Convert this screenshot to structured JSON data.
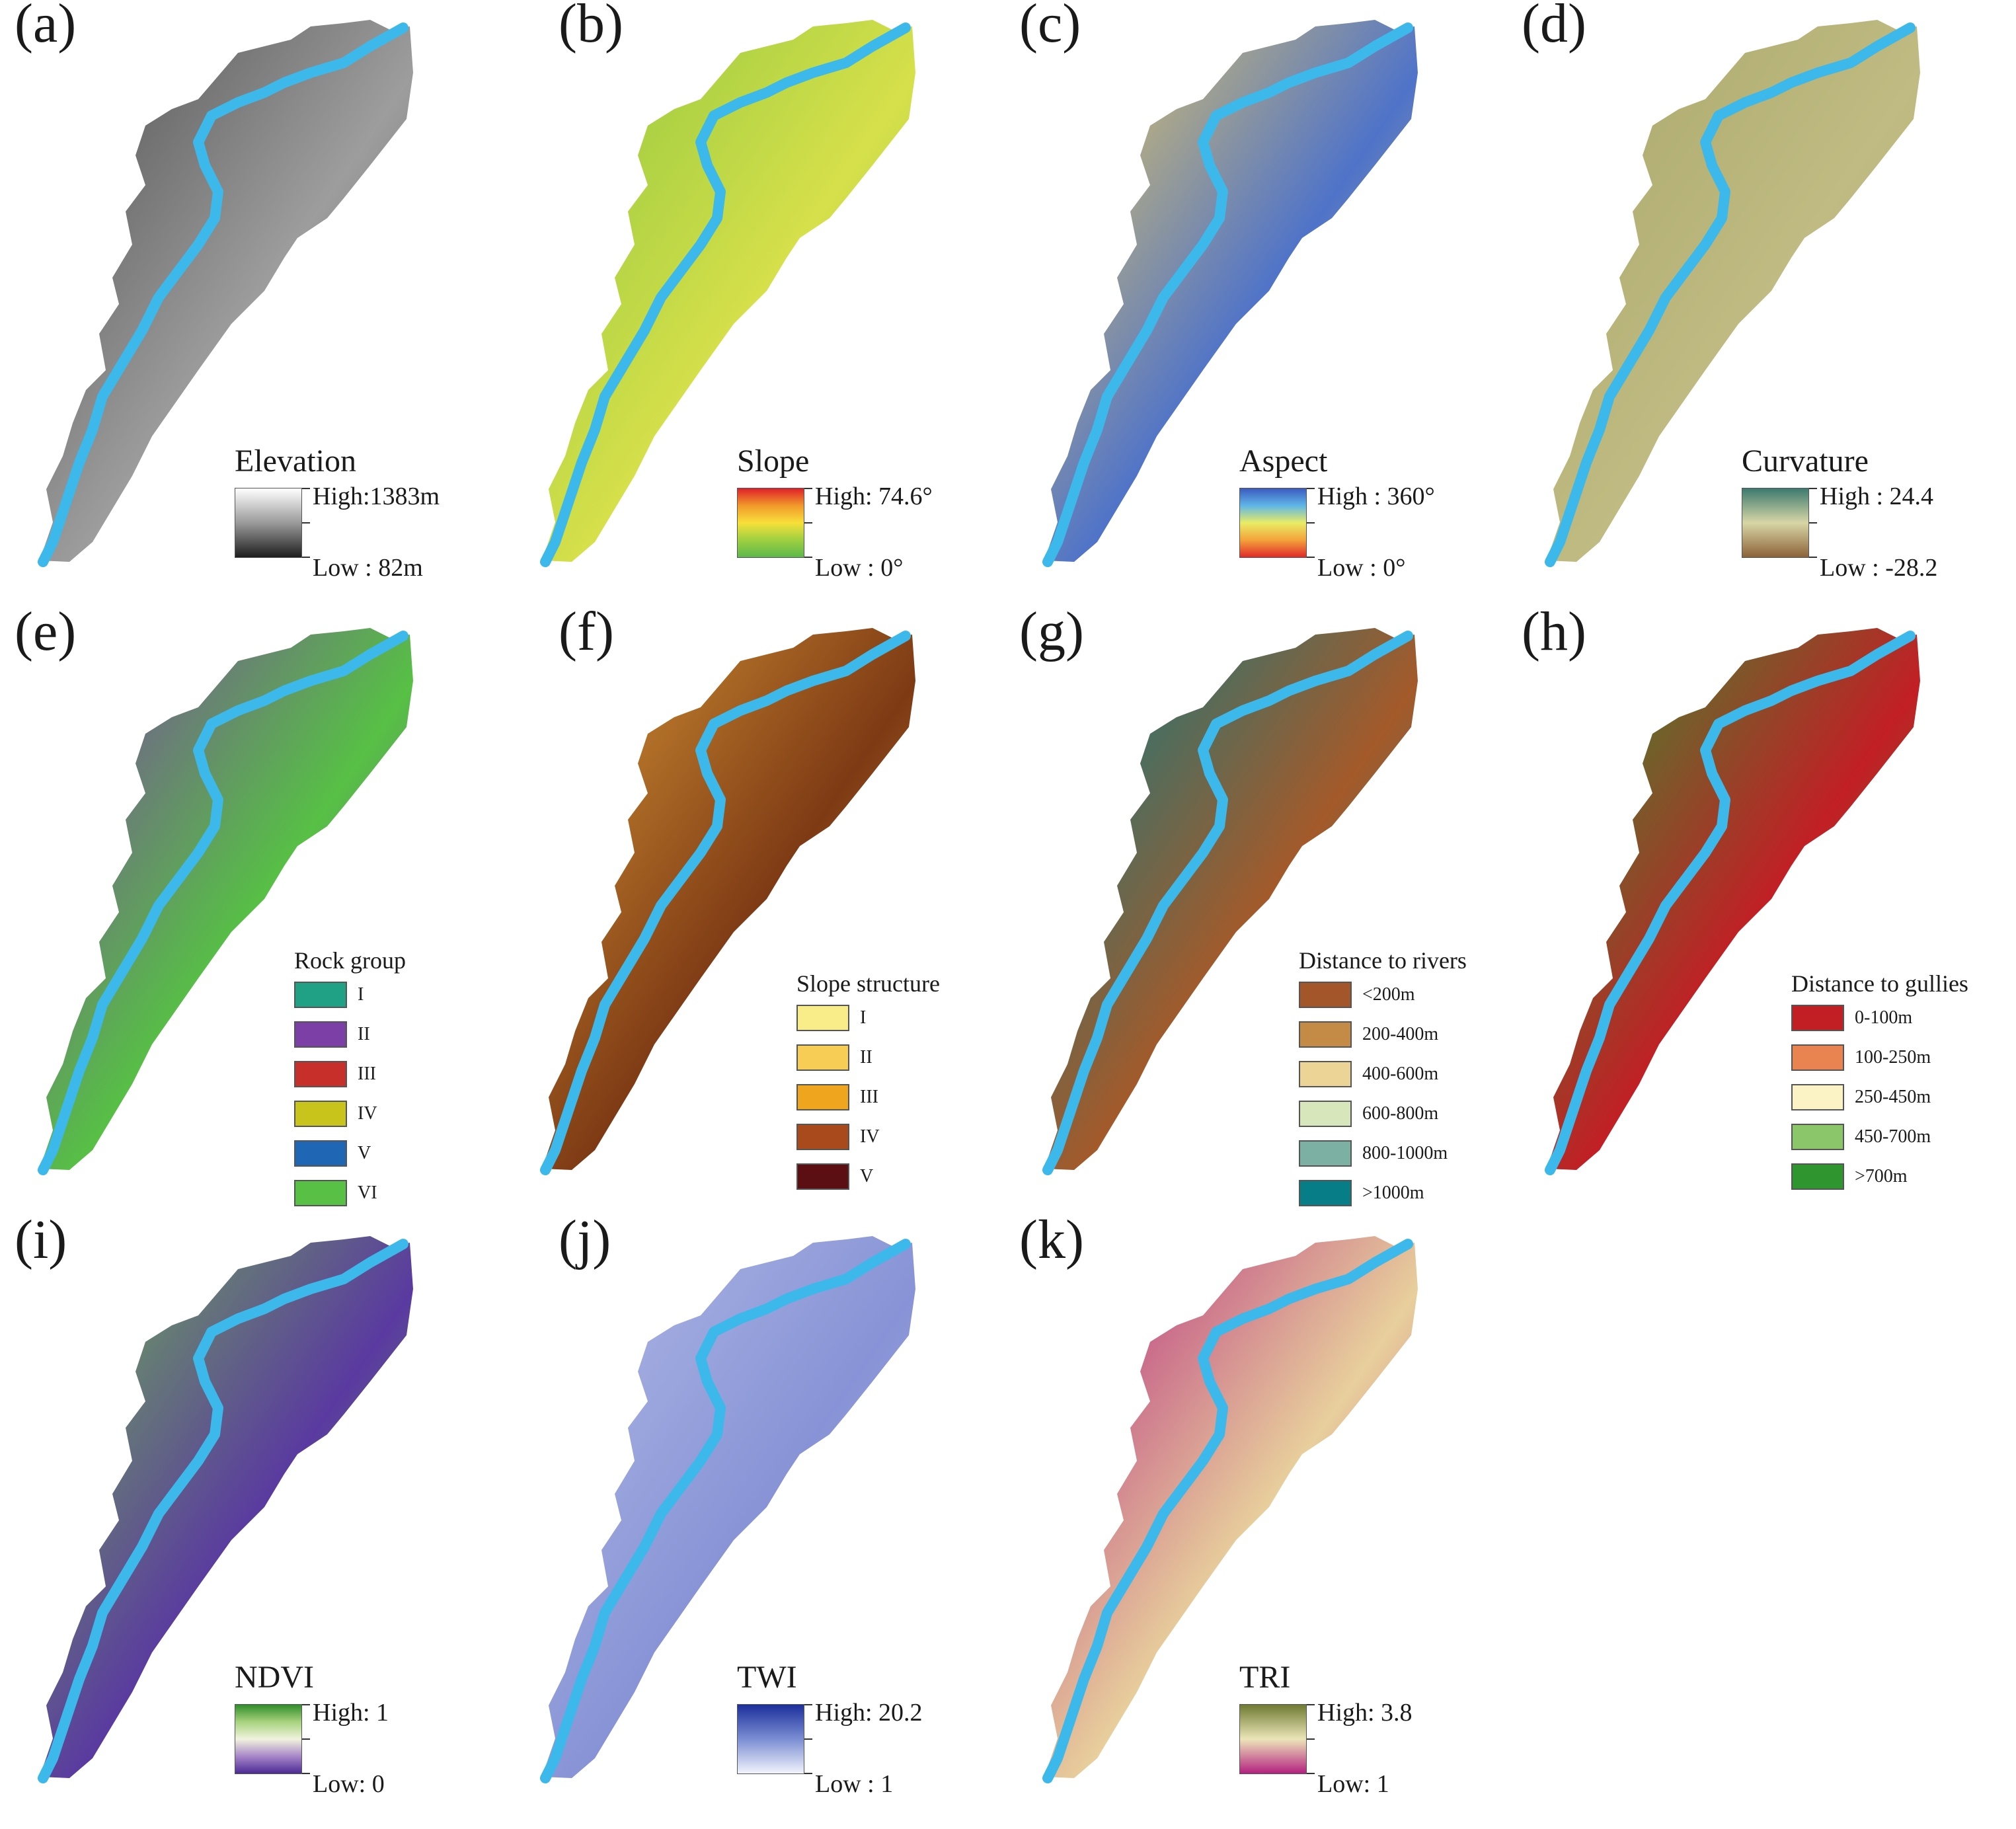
{
  "panels": [
    {
      "id": "a",
      "label": "(a)",
      "kind": "ramp",
      "title": "Elevation",
      "high": "High:1383m",
      "low": "Low : 82m",
      "ramp": [
        "#ffffff",
        "#9a9a9a",
        "#1e1e1e"
      ],
      "fill": "#4d4d4d",
      "fill2": "#9d9d9d"
    },
    {
      "id": "b",
      "label": "(b)",
      "kind": "ramp",
      "title": "Slope",
      "high": "High: 74.6°",
      "low": "Low : 0°",
      "ramp": [
        "#e0202a",
        "#f19a2b",
        "#f7e03a",
        "#9ed03f",
        "#5bb94a"
      ],
      "fill": "#8cc63f",
      "fill2": "#d6e04a"
    },
    {
      "id": "c",
      "label": "(c)",
      "kind": "ramp",
      "title": "Aspect",
      "high": "High : 360°",
      "low": "Low : 0°",
      "ramp": [
        "#3b5bbf",
        "#5fb6e8",
        "#e9ec66",
        "#f4a23a",
        "#e02a2a"
      ],
      "fill": "#f2cf5a",
      "fill2": "#4f73c9"
    },
    {
      "id": "d",
      "label": "(d)",
      "kind": "ramp",
      "title": "Curvature",
      "high": "High : 24.4",
      "low": "Low : -28.2",
      "ramp": [
        "#3c7a6f",
        "#d8d6a6",
        "#8c6238"
      ],
      "fill": "#a9a66a",
      "fill2": "#bfbb82"
    },
    {
      "id": "e",
      "label": "(e)",
      "kind": "class",
      "title": "Rock group",
      "fill": "#7b3fa5",
      "fill2": "#57c045",
      "classes": [
        {
          "name": "I",
          "color": "#20a186"
        },
        {
          "name": "II",
          "color": "#7b3fa5"
        },
        {
          "name": "III",
          "color": "#c62f2a"
        },
        {
          "name": "IV",
          "color": "#c8c41c"
        },
        {
          "name": "V",
          "color": "#1f66b5"
        },
        {
          "name": "VI",
          "color": "#57c045"
        }
      ]
    },
    {
      "id": "f",
      "label": "(f)",
      "kind": "class",
      "title": "Slope structure",
      "fill": "#d99a38",
      "fill2": "#7e3a14",
      "classes": [
        {
          "name": "I",
          "color": "#f8ed88"
        },
        {
          "name": "II",
          "color": "#f7cd56"
        },
        {
          "name": "III",
          "color": "#f0a51f"
        },
        {
          "name": "IV",
          "color": "#a94a1d"
        },
        {
          "name": "V",
          "color": "#5c0f12"
        }
      ]
    },
    {
      "id": "g",
      "label": "(g)",
      "kind": "class",
      "title": "Distance to rivers",
      "fill": "#077d88",
      "fill2": "#a45a2a",
      "classes": [
        {
          "name": "<200m",
          "color": "#a4562b"
        },
        {
          "name": "200-400m",
          "color": "#c48b46"
        },
        {
          "name": "400-600m",
          "color": "#ecd497"
        },
        {
          "name": "600-800m",
          "color": "#d8e6bc"
        },
        {
          "name": "800-1000m",
          "color": "#7bb0a3"
        },
        {
          "name": ">1000m",
          "color": "#077d88"
        }
      ]
    },
    {
      "id": "h",
      "label": "(h)",
      "kind": "class",
      "title": "Distance to gullies",
      "fill": "#2f962f",
      "fill2": "#c21f25",
      "classes": [
        {
          "name": "0-100m",
          "color": "#c21f25"
        },
        {
          "name": "100-250m",
          "color": "#e9834f"
        },
        {
          "name": "250-450m",
          "color": "#fbf3c6"
        },
        {
          "name": "450-700m",
          "color": "#8cc66b"
        },
        {
          "name": ">700m",
          "color": "#2f962f"
        }
      ]
    },
    {
      "id": "i",
      "label": "(i)",
      "kind": "ramp",
      "title": "NDVI",
      "high": "High: 1",
      "low": "Low: 0",
      "ramp": [
        "#2f8d2a",
        "#a7d37d",
        "#f1f3dd",
        "#a786c8",
        "#4b2a94"
      ],
      "fill": "#6fb450",
      "fill2": "#5a3aa0"
    },
    {
      "id": "j",
      "label": "(j)",
      "kind": "ramp",
      "title": "TWI",
      "high": "High: 20.2",
      "low": "Low : 1",
      "ramp": [
        "#1c2f9c",
        "#7b8ed3",
        "#f2f3fb"
      ],
      "fill": "#b3bbe6",
      "fill2": "#8793d6"
    },
    {
      "id": "k",
      "label": "(k)",
      "kind": "ramp",
      "title": "TRI",
      "high": "High: 3.8",
      "low": "Low: 1",
      "ramp": [
        "#6e7a31",
        "#ece6b8",
        "#b3217f"
      ],
      "fill": "#b3207f",
      "fill2": "#e8cf9c"
    }
  ],
  "river_color": "#3cb9ea"
}
